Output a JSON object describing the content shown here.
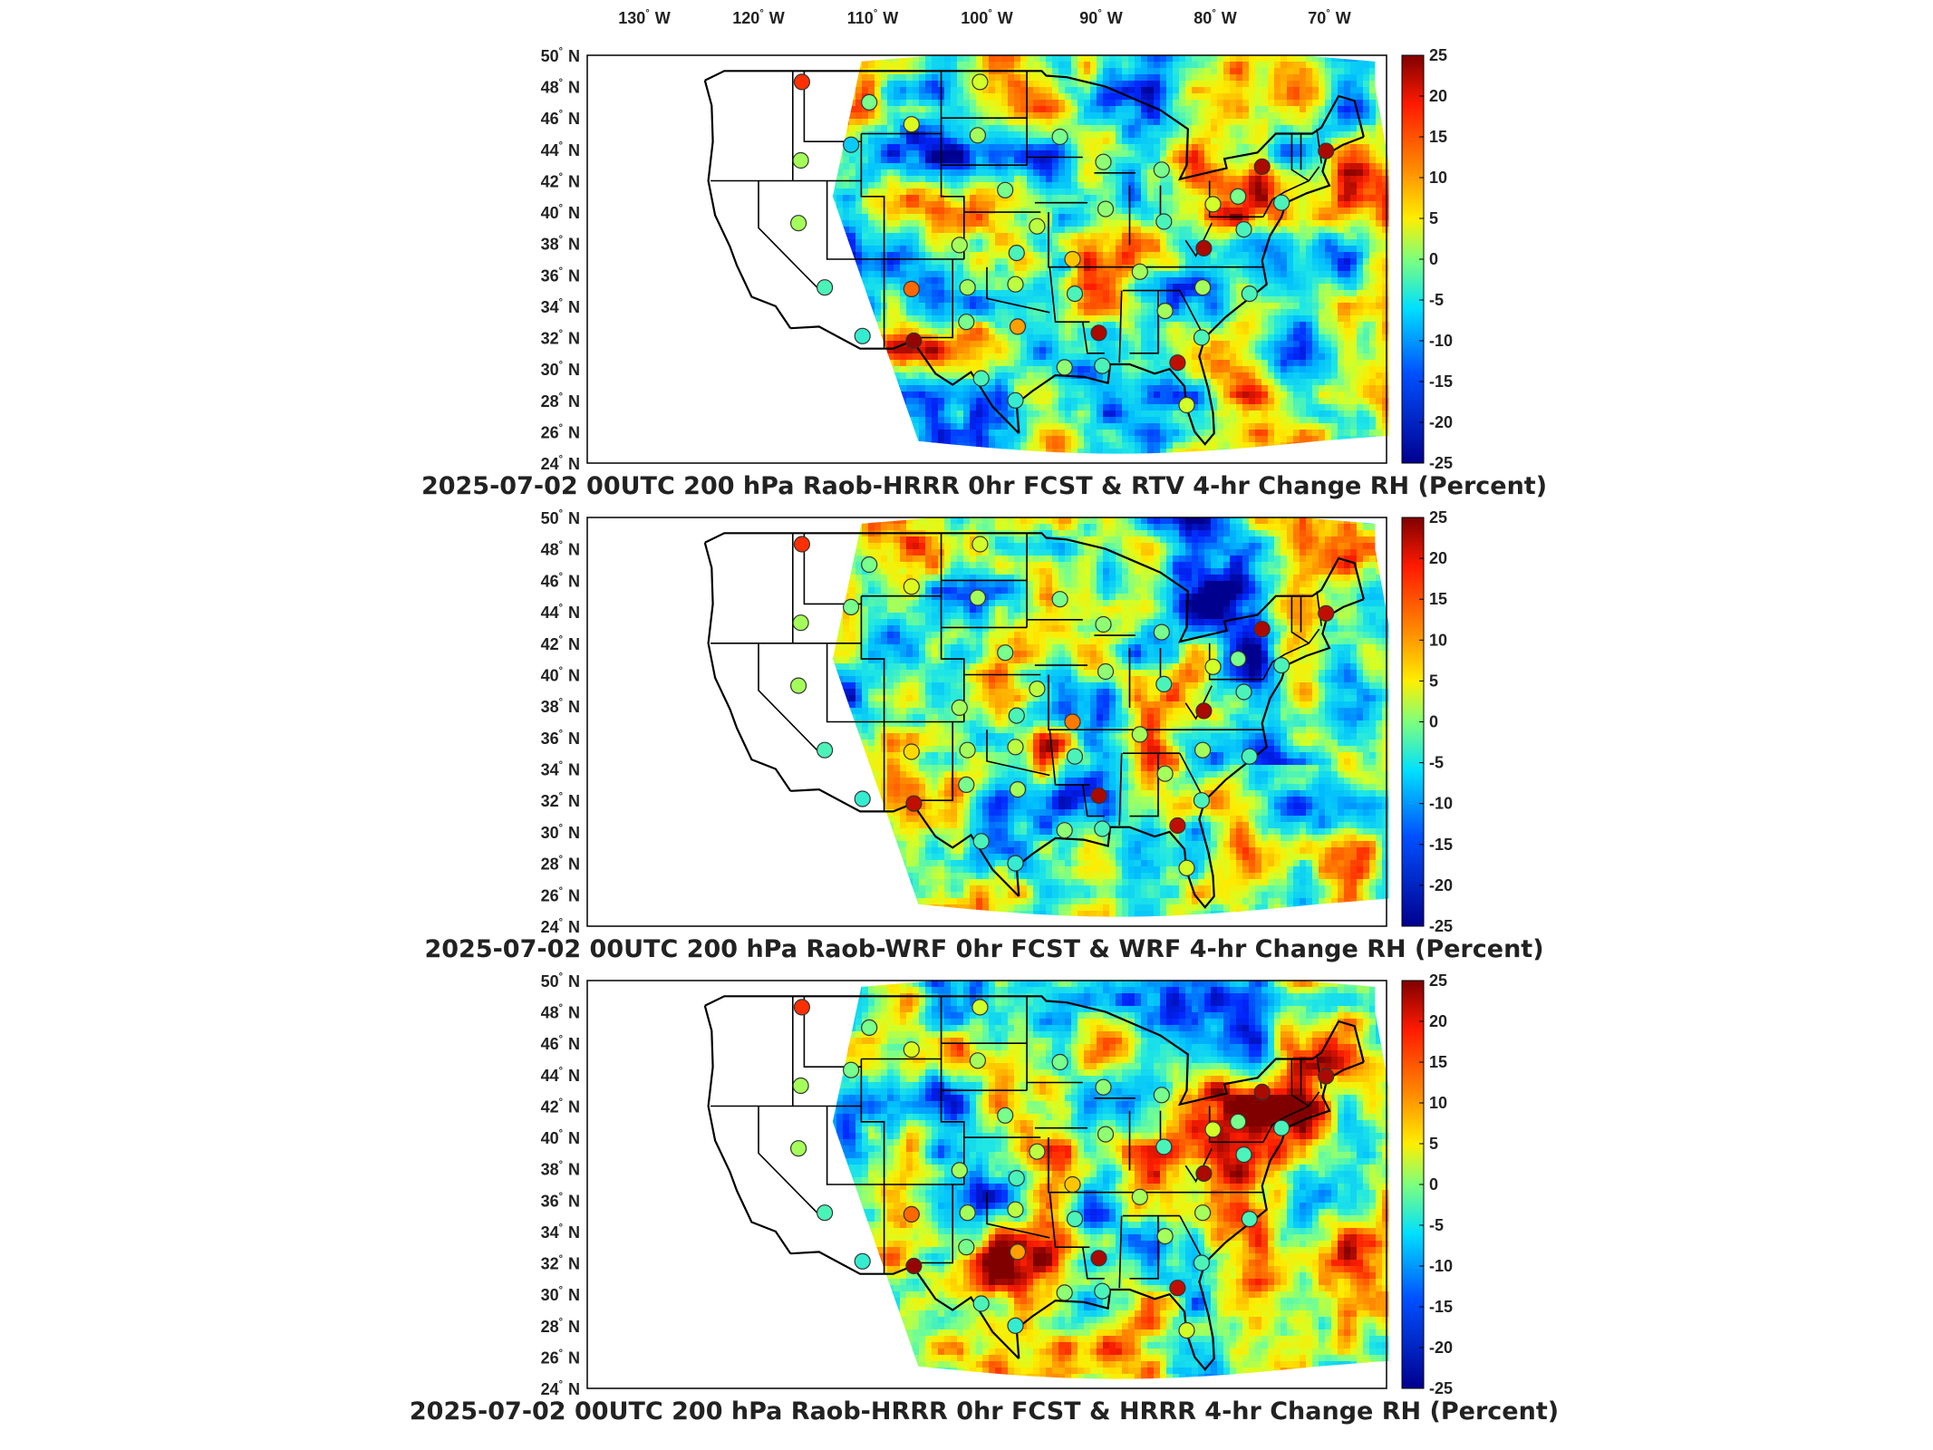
{
  "longitude_labels": [
    {
      "deg": "130",
      "hemi": "W"
    },
    {
      "deg": "120",
      "hemi": "W"
    },
    {
      "deg": "110",
      "hemi": "W"
    },
    {
      "deg": "100",
      "hemi": "W"
    },
    {
      "deg": "90",
      "hemi": "W"
    },
    {
      "deg": "80",
      "hemi": "W"
    },
    {
      "deg": "70",
      "hemi": "W"
    }
  ],
  "latitude_labels": [
    "50",
    "48",
    "46",
    "44",
    "42",
    "40",
    "38",
    "36",
    "34",
    "32",
    "30",
    "28",
    "26",
    "24"
  ],
  "latitude_hemi": "N",
  "colorbar_ticks": [
    "25",
    "20",
    "15",
    "10",
    "5",
    "0",
    "-5",
    "-10",
    "-15",
    "-20",
    "-25"
  ],
  "colorbar_colors": {
    "top": "#800000",
    "red": "#ff1a00",
    "orange": "#ff8c00",
    "yellow": "#ffee00",
    "green": "#7dff7d",
    "cyan": "#00e0ff",
    "blue": "#0050ff",
    "bottom": "#00008f"
  },
  "panels": [
    {
      "title": "2025-07-02 00UTC 200 hPa Raob-HRRR 0hr FCST & RTV 4-hr Change RH (Percent)",
      "variant": 0
    },
    {
      "title": "2025-07-02 00UTC 200 hPa Raob-WRF 0hr FCST & WRF 4-hr Change RH (Percent)",
      "variant": 1
    },
    {
      "title": "2025-07-02 00UTC 200 hPa Raob-HRRR 0hr FCST & HRRR 4-hr Change RH (Percent)",
      "variant": 2
    }
  ],
  "map_extent": {
    "lon_min": -135,
    "lon_max": -65,
    "lat_min": 24,
    "lat_max": 50
  },
  "raob_stations": [
    {
      "lon": -116.2,
      "lat": 48.3,
      "value": [
        18,
        18,
        18
      ]
    },
    {
      "lon": -110.3,
      "lat": 47.0,
      "value": [
        0,
        0,
        0
      ]
    },
    {
      "lon": -106.6,
      "lat": 45.6,
      "value": [
        5,
        5,
        5
      ]
    },
    {
      "lon": -100.6,
      "lat": 48.3,
      "value": [
        4,
        4,
        4
      ]
    },
    {
      "lon": -111.9,
      "lat": 44.3,
      "value": [
        -8,
        0,
        0
      ]
    },
    {
      "lon": -100.8,
      "lat": 44.9,
      "value": [
        2,
        2,
        2
      ]
    },
    {
      "lon": -93.6,
      "lat": 44.8,
      "value": [
        0,
        0,
        0
      ]
    },
    {
      "lon": -116.3,
      "lat": 43.3,
      "value": [
        2,
        2,
        2
      ]
    },
    {
      "lon": -89.8,
      "lat": 43.2,
      "value": [
        1,
        1,
        1
      ]
    },
    {
      "lon": -84.7,
      "lat": 42.7,
      "value": [
        0,
        0,
        0
      ]
    },
    {
      "lon": -75.9,
      "lat": 42.9,
      "value": [
        23,
        23,
        23
      ]
    },
    {
      "lon": -70.3,
      "lat": 43.9,
      "value": [
        23,
        22,
        23
      ]
    },
    {
      "lon": -98.4,
      "lat": 41.4,
      "value": [
        0,
        0,
        0
      ]
    },
    {
      "lon": -89.6,
      "lat": 40.2,
      "value": [
        1,
        1,
        1
      ]
    },
    {
      "lon": -80.2,
      "lat": 40.5,
      "value": [
        4,
        4,
        4
      ]
    },
    {
      "lon": -84.5,
      "lat": 39.4,
      "value": [
        -2,
        -2,
        -2
      ]
    },
    {
      "lon": -116.5,
      "lat": 39.3,
      "value": [
        2,
        2,
        2
      ]
    },
    {
      "lon": -102.4,
      "lat": 37.9,
      "value": [
        2,
        2,
        2
      ]
    },
    {
      "lon": -95.6,
      "lat": 39.1,
      "value": [
        3,
        3,
        3
      ]
    },
    {
      "lon": -92.5,
      "lat": 37.0,
      "value": [
        10,
        14,
        10
      ]
    },
    {
      "lon": -97.4,
      "lat": 37.4,
      "value": [
        -2,
        -2,
        -2
      ]
    },
    {
      "lon": -81.0,
      "lat": 37.7,
      "value": [
        23,
        23,
        23
      ]
    },
    {
      "lon": -77.5,
      "lat": 38.9,
      "value": [
        -2,
        -2,
        -2
      ]
    },
    {
      "lon": -114.2,
      "lat": 35.2,
      "value": [
        -2,
        -2,
        -2
      ]
    },
    {
      "lon": -106.6,
      "lat": 35.1,
      "value": [
        15,
        9,
        15
      ]
    },
    {
      "lon": -101.7,
      "lat": 35.2,
      "value": [
        2,
        2,
        2
      ]
    },
    {
      "lon": -97.5,
      "lat": 35.4,
      "value": [
        3,
        3,
        3
      ]
    },
    {
      "lon": -86.6,
      "lat": 36.2,
      "value": [
        2,
        2,
        2
      ]
    },
    {
      "lon": -92.3,
      "lat": 34.8,
      "value": [
        -2,
        -2,
        -2
      ]
    },
    {
      "lon": -81.1,
      "lat": 35.2,
      "value": [
        2,
        2,
        2
      ]
    },
    {
      "lon": -77.0,
      "lat": 34.8,
      "value": [
        -2,
        -2,
        -2
      ]
    },
    {
      "lon": -110.9,
      "lat": 32.1,
      "value": [
        -3,
        -3,
        -3
      ]
    },
    {
      "lon": -106.4,
      "lat": 31.8,
      "value": [
        24,
        22,
        24
      ]
    },
    {
      "lon": -101.8,
      "lat": 33.0,
      "value": [
        0,
        0,
        0
      ]
    },
    {
      "lon": -97.3,
      "lat": 32.7,
      "value": [
        12,
        2,
        12
      ]
    },
    {
      "lon": -90.2,
      "lat": 32.3,
      "value": [
        23,
        23,
        23
      ]
    },
    {
      "lon": -84.4,
      "lat": 33.7,
      "value": [
        2,
        2,
        2
      ]
    },
    {
      "lon": -81.2,
      "lat": 32.0,
      "value": [
        -2,
        -2,
        -2
      ]
    },
    {
      "lon": -83.3,
      "lat": 30.4,
      "value": [
        22,
        22,
        22
      ]
    },
    {
      "lon": -100.5,
      "lat": 29.4,
      "value": [
        -2,
        -2,
        -2
      ]
    },
    {
      "lon": -97.5,
      "lat": 28.0,
      "value": [
        -3,
        -3,
        -3
      ]
    },
    {
      "lon": -93.2,
      "lat": 30.1,
      "value": [
        1,
        1,
        1
      ]
    },
    {
      "lon": -89.9,
      "lat": 30.2,
      "value": [
        -2,
        -2,
        -2
      ]
    },
    {
      "lon": -82.5,
      "lat": 27.7,
      "value": [
        4,
        4,
        4
      ]
    },
    {
      "lon": -74.2,
      "lat": 40.6,
      "value": [
        -2,
        -2,
        -2
      ]
    },
    {
      "lon": -78.0,
      "lat": 41.0,
      "value": [
        0,
        0,
        0
      ]
    }
  ]
}
